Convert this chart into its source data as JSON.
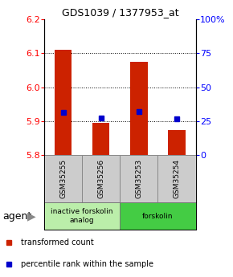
{
  "title": "GDS1039 / 1377953_at",
  "samples": [
    "GSM35255",
    "GSM35256",
    "GSM35253",
    "GSM35254"
  ],
  "bar_tops": [
    6.11,
    5.895,
    6.075,
    5.875
  ],
  "bar_bottom": 5.8,
  "percentile_values": [
    5.925,
    5.91,
    5.928,
    5.908
  ],
  "ylim": [
    5.8,
    6.2
  ],
  "yticks_left": [
    5.8,
    5.9,
    6.0,
    6.1,
    6.2
  ],
  "yticks_right_vals": [
    0,
    25,
    50,
    75,
    100
  ],
  "yticks_right_labels": [
    "0",
    "25",
    "50",
    "75",
    "100%"
  ],
  "groups": [
    {
      "label": "inactive forskolin\nanalog",
      "samples_idx": [
        0,
        1
      ],
      "color": "#bbeeaa"
    },
    {
      "label": "forskolin",
      "samples_idx": [
        2,
        3
      ],
      "color": "#44cc44"
    }
  ],
  "bar_color": "#cc2200",
  "percentile_color": "#0000cc",
  "agent_label": "agent",
  "legend_bar_label": "transformed count",
  "legend_pct_label": "percentile rank within the sample",
  "bar_width": 0.45,
  "grid_lines": [
    5.9,
    6.0,
    6.1
  ],
  "sample_box_color": "#cccccc",
  "sample_box_edge": "#888888"
}
